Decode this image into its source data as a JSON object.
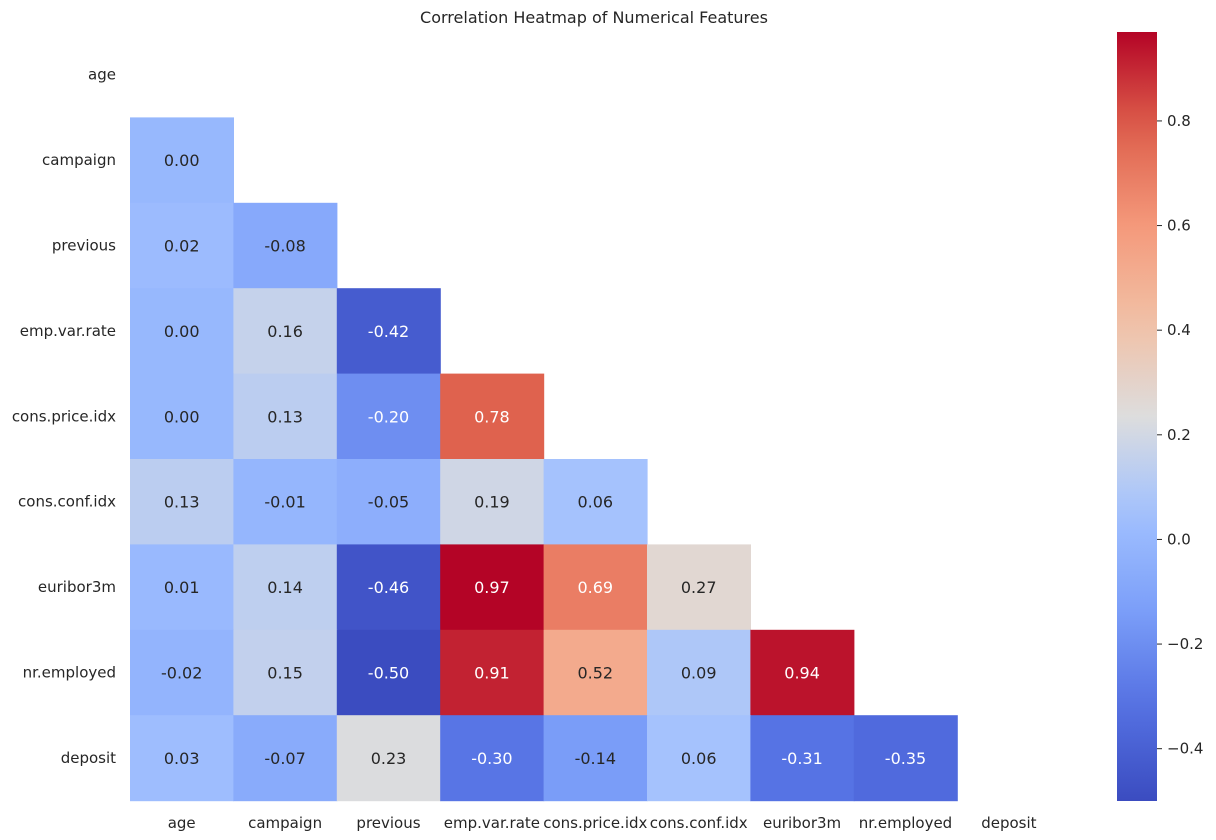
{
  "chart_data": {
    "type": "heatmap",
    "title": "Correlation Heatmap of Numerical Features",
    "xlabel": "",
    "ylabel": "",
    "x_categories": [
      "age",
      "campaign",
      "previous",
      "emp.var.rate",
      "cons.price.idx",
      "cons.conf.idx",
      "euribor3m",
      "nr.employed",
      "deposit"
    ],
    "y_categories": [
      "age",
      "campaign",
      "previous",
      "emp.var.rate",
      "cons.price.idx",
      "cons.conf.idx",
      "euribor3m",
      "nr.employed",
      "deposit"
    ],
    "mask": "upper-triangle-including-diagonal",
    "values": [
      [
        null,
        null,
        null,
        null,
        null,
        null,
        null,
        null,
        null
      ],
      [
        0.0,
        null,
        null,
        null,
        null,
        null,
        null,
        null,
        null
      ],
      [
        0.02,
        -0.08,
        null,
        null,
        null,
        null,
        null,
        null,
        null
      ],
      [
        0.0,
        0.16,
        -0.42,
        null,
        null,
        null,
        null,
        null,
        null
      ],
      [
        0.0,
        0.13,
        -0.2,
        0.78,
        null,
        null,
        null,
        null,
        null
      ],
      [
        0.13,
        -0.01,
        -0.05,
        0.19,
        0.06,
        null,
        null,
        null,
        null
      ],
      [
        0.01,
        0.14,
        -0.46,
        0.97,
        0.69,
        0.27,
        null,
        null,
        null
      ],
      [
        -0.02,
        0.15,
        -0.5,
        0.91,
        0.52,
        0.09,
        0.94,
        null,
        null
      ],
      [
        0.03,
        -0.07,
        0.23,
        -0.3,
        -0.14,
        0.06,
        -0.31,
        -0.35,
        null
      ]
    ],
    "value_format": "0.00",
    "colormap": "coolwarm",
    "colorbar": {
      "range": [
        -0.5,
        0.97
      ],
      "ticks": [
        -0.4,
        -0.2,
        0.0,
        0.2,
        0.4,
        0.6,
        0.8
      ],
      "tick_labels": [
        "−0.4",
        "−0.2",
        "0.0",
        "0.2",
        "0.4",
        "0.6",
        "0.8"
      ]
    },
    "grid": false,
    "legend": "colorbar-right"
  }
}
